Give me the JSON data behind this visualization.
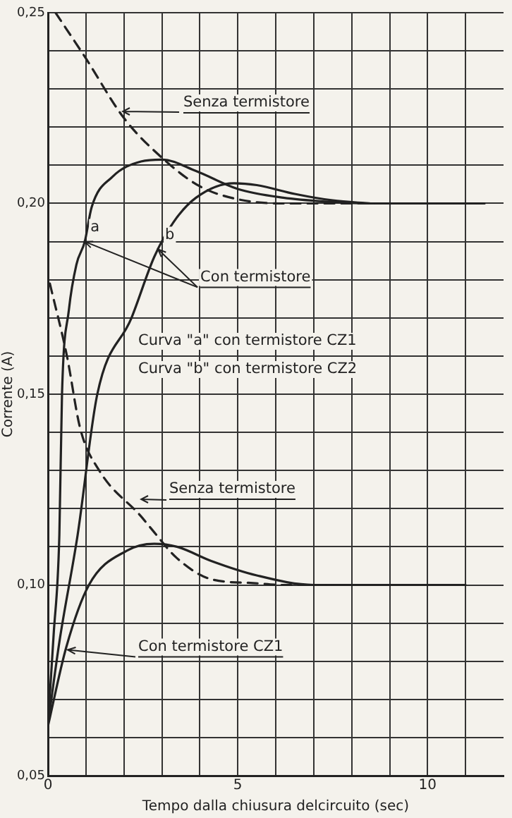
{
  "chart_data": {
    "type": "line",
    "xlabel": "Tempo dalla chiusura delcircuito (sec)",
    "ylabel": "Corrente (A)",
    "xlim": [
      0,
      12
    ],
    "ylim": [
      0.05,
      0.25
    ],
    "xticks": [
      0,
      {
        "value": 1,
        "label": null
      },
      {
        "value": 2,
        "label": null
      },
      {
        "value": 3,
        "label": null
      },
      {
        "value": 4,
        "label": null
      },
      5,
      {
        "value": 6,
        "label": null
      },
      {
        "value": 7,
        "label": null
      },
      {
        "value": 8,
        "label": null
      },
      {
        "value": 9,
        "label": null
      },
      10,
      {
        "value": 11,
        "label": null
      }
    ],
    "yticks": [
      {
        "value": 0.05,
        "label": "0,05"
      },
      {
        "value": 0.06,
        "label": null
      },
      {
        "value": 0.07,
        "label": null
      },
      {
        "value": 0.08,
        "label": null
      },
      {
        "value": 0.09,
        "label": null
      },
      {
        "value": 0.1,
        "label": "0,10"
      },
      {
        "value": 0.11,
        "label": null
      },
      {
        "value": 0.12,
        "label": null
      },
      {
        "value": 0.13,
        "label": null
      },
      {
        "value": 0.14,
        "label": null
      },
      {
        "value": 0.15,
        "label": "0,15"
      },
      {
        "value": 0.16,
        "label": null
      },
      {
        "value": 0.17,
        "label": null
      },
      {
        "value": 0.18,
        "label": null
      },
      {
        "value": 0.19,
        "label": null
      },
      {
        "value": 0.2,
        "label": "0,20"
      },
      {
        "value": 0.21,
        "label": null
      },
      {
        "value": 0.22,
        "label": null
      },
      {
        "value": 0.23,
        "label": null
      },
      {
        "value": 0.24,
        "label": null
      },
      {
        "value": 0.25,
        "label": "0,25"
      }
    ],
    "grid": true,
    "legend": false,
    "marker": "none",
    "series": [
      {
        "color": "#222222",
        "line_style": "dashed",
        "x": [
          0.2,
          1,
          2,
          3,
          4,
          5,
          6.2,
          8,
          11.5
        ],
        "values": [
          0.25,
          0.238,
          0.2224,
          0.212,
          0.2045,
          0.2011,
          0.2,
          0.2,
          0.2
        ]
      },
      {
        "color": "#222222",
        "line_style": "solid",
        "x": [
          0,
          0.15,
          0.3,
          0.37,
          0.55,
          0.75,
          0.97,
          1.15,
          1.7,
          2.45,
          3,
          3.9,
          5,
          6.2,
          7.3,
          8.5,
          11.4
        ],
        "values": [
          0.0634,
          0.087,
          0.113,
          0.15,
          0.172,
          0.184,
          0.19,
          0.199,
          0.207,
          0.211,
          0.2115,
          0.2085,
          0.2038,
          0.2015,
          0.2005,
          0.2,
          0.2
        ]
      },
      {
        "color": "#222222",
        "line_style": "solid",
        "x": [
          0,
          0.3,
          0.78,
          1.3,
          2.2,
          2.8,
          3.3,
          3.9,
          4.9,
          5.5,
          6.5,
          7.5,
          8.5
        ],
        "values": [
          0.0634,
          0.085,
          0.113,
          0.15,
          0.17,
          0.186,
          0.195,
          0.2015,
          0.2053,
          0.2048,
          0.2025,
          0.2008,
          0.2
        ]
      },
      {
        "color": "#222222",
        "line_style": "dashed",
        "x": [
          0.05,
          0.5,
          0.85,
          1.35,
          2.45,
          2.7,
          3.4,
          4.3,
          5.4,
          6.2,
          7.5
        ],
        "values": [
          0.179,
          0.16,
          0.141,
          0.13,
          0.118,
          0.115,
          0.107,
          0.1015,
          0.1005,
          0.1,
          0.1
        ]
      },
      {
        "color": "#222222",
        "line_style": "solid",
        "x": [
          0,
          0.48,
          1.08,
          2.08,
          2.8,
          3.4,
          4.3,
          5.5,
          7,
          11
        ],
        "values": [
          0.063,
          0.0836,
          0.1,
          0.109,
          0.1108,
          0.11,
          0.1063,
          0.1025,
          0.1,
          0.1
        ]
      }
    ],
    "annotations": [
      "Senza termistore",
      {
        "text": "a",
        "x": 0.97,
        "y": 0.19
      },
      {
        "text": "b",
        "x": 2.9,
        "y": 0.188
      },
      {
        "text": "Con termistore",
        "x": 2.9,
        "y": 0.188
      },
      "Curva \"a\" con termistore CZ1",
      "Curva \"b\" con termistore CZ2",
      "Senza termistore",
      {
        "text": "Con termistore CZ1",
        "x": 0.52,
        "y": 0.083
      }
    ]
  }
}
